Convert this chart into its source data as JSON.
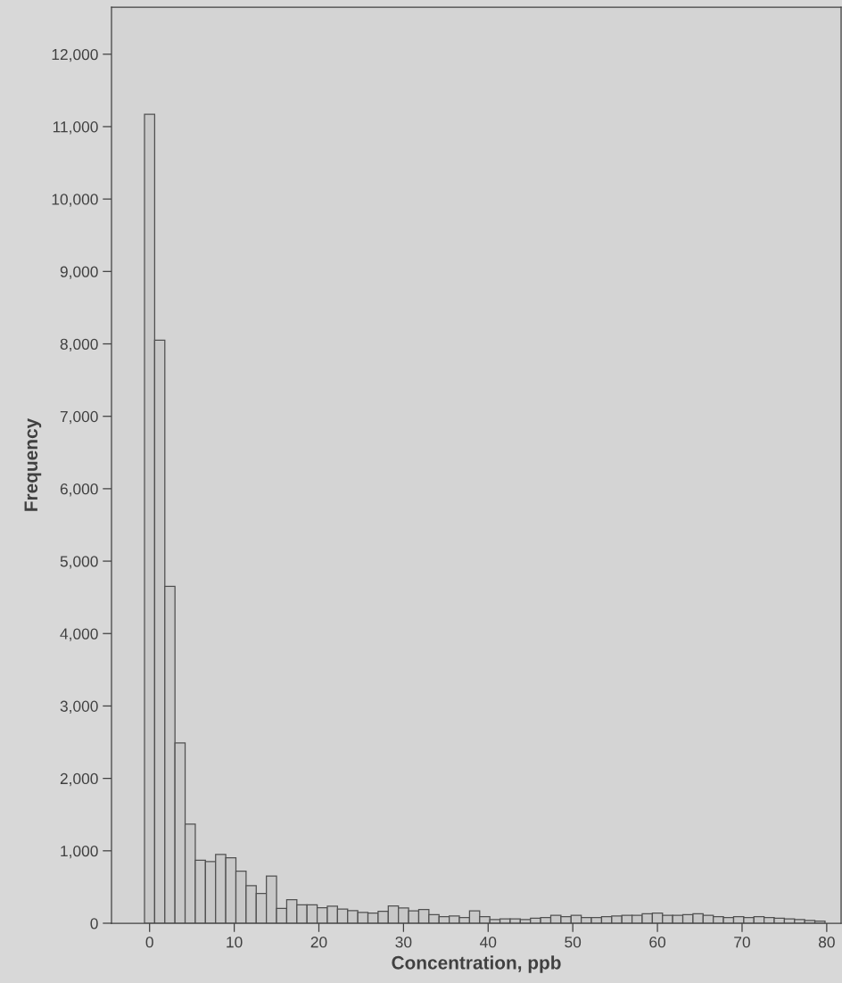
{
  "chart_data": {
    "type": "histogram",
    "xlabel": "Concentration, ppb",
    "ylabel": "Frequency",
    "bins": [
      -0.6,
      0.6,
      1.8,
      3.0,
      4.2,
      5.4,
      6.6,
      7.8,
      9.0,
      10.2,
      11.4,
      12.6,
      13.8,
      15.0,
      16.2,
      17.4,
      18.6,
      19.8,
      21.0,
      22.2,
      23.4,
      24.6,
      25.8,
      27.0,
      28.2,
      29.4,
      30.6,
      31.8,
      33.0,
      34.2,
      35.4,
      36.6,
      37.8,
      39.0,
      40.2,
      41.4,
      42.6,
      43.8,
      45.0,
      46.2,
      47.4,
      48.6,
      49.8,
      51.0,
      52.2,
      53.4,
      54.6,
      55.8,
      57.0,
      58.2,
      59.4,
      60.6,
      61.8,
      63.0,
      64.2,
      65.4,
      66.6,
      67.8,
      69.0,
      70.2,
      71.4,
      72.6,
      73.8,
      75.0,
      76.2,
      77.4,
      78.6,
      79.8
    ],
    "values": [
      11170,
      8050,
      4650,
      2490,
      1370,
      870,
      850,
      950,
      905,
      720,
      520,
      410,
      650,
      205,
      325,
      255,
      255,
      215,
      235,
      195,
      175,
      150,
      140,
      165,
      240,
      210,
      170,
      190,
      120,
      90,
      100,
      80,
      170,
      90,
      50,
      60,
      60,
      50,
      70,
      80,
      110,
      90,
      110,
      80,
      80,
      90,
      100,
      110,
      110,
      130,
      140,
      110,
      110,
      120,
      130,
      110,
      90,
      80,
      90,
      80,
      90,
      80,
      70,
      60,
      50,
      40,
      30
    ],
    "color": "#c8c8c8",
    "xlim": [
      -4.5,
      81.7
    ],
    "xticks": [
      0,
      10,
      20,
      30,
      40,
      50,
      60,
      70,
      80
    ],
    "ylim": [
      0,
      12650
    ],
    "yticks": [
      {
        "value": 0,
        "label": "0"
      },
      {
        "value": 1000,
        "label": "1,000"
      },
      {
        "value": 2000,
        "label": "2,000"
      },
      {
        "value": 3000,
        "label": "3,000"
      },
      {
        "value": 4000,
        "label": "4,000"
      },
      {
        "value": 5000,
        "label": "5,000"
      },
      {
        "value": 6000,
        "label": "6,000"
      },
      {
        "value": 7000,
        "label": "7,000"
      },
      {
        "value": 8000,
        "label": "8,000"
      },
      {
        "value": 9000,
        "label": "9,000"
      },
      {
        "value": 10000,
        "label": "10,000"
      },
      {
        "value": 11000,
        "label": "11,000"
      },
      {
        "value": 12000,
        "label": "12,000"
      }
    ],
    "grid": false
  }
}
